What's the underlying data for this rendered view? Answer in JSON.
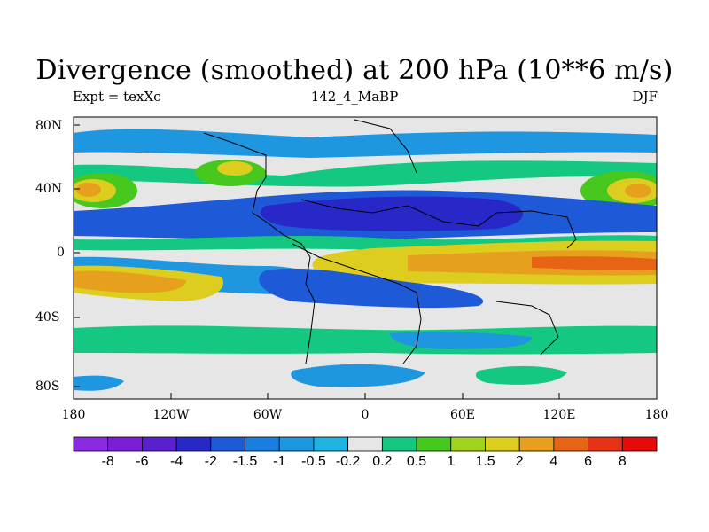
{
  "title": "Divergence (smoothed) at 200 hPa (10**6 m/s)",
  "subtitle_left": "Expt = texXc",
  "subtitle_center": "142_4_MaBP",
  "subtitle_right": "DJF",
  "lat_labels": [
    "80N",
    "40N",
    "0",
    "40S",
    "80S"
  ],
  "lon_labels": [
    "180",
    "120W",
    "60W",
    "0",
    "60E",
    "120E",
    "180"
  ],
  "colorbar": {
    "labels": [
      "-8",
      "-6",
      "-4",
      "-2",
      "-1.5",
      "-1",
      "-0.5",
      "-0.2",
      "0.2",
      "0.5",
      "1",
      "1.5",
      "2",
      "4",
      "6",
      "8"
    ],
    "colors": [
      "#8a2be2",
      "#7b1fd6",
      "#5a20d0",
      "#2828c8",
      "#1e5ad8",
      "#1a7ee0",
      "#1e96e0",
      "#1eb4e0",
      "#e6e6e6",
      "#14c882",
      "#46c81e",
      "#a0d21e",
      "#dccd1e",
      "#e6a01e",
      "#e66414",
      "#e63214",
      "#e60a0a"
    ]
  }
}
